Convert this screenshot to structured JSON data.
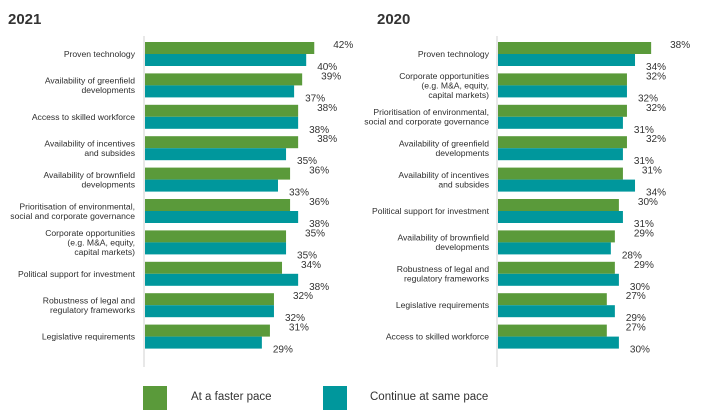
{
  "chart_data": [
    {
      "type": "bar",
      "orientation": "horizontal",
      "title": "2021",
      "categories": [
        "Proven technology",
        "Availability of greenfield developments",
        "Access to skilled workforce",
        "Availability of incentives and subsides",
        "Availability of brownfield developments",
        "Prioritisation of environmental, social and corporate governance",
        "Corporate opportunities (e.g.  M&A, equity, capital markets)",
        "Political support for investment",
        "Robustness of legal and regulatory frameworks",
        "Legislative requirements"
      ],
      "category_lines": [
        [
          "Proven technology"
        ],
        [
          "Availability of greenfield",
          "developments"
        ],
        [
          "Access to skilled workforce"
        ],
        [
          "Availability of incentives",
          "and subsides"
        ],
        [
          "Availability of brownfield",
          "developments"
        ],
        [
          "Prioritisation of environmental,",
          "social and corporate governance"
        ],
        [
          "Corporate opportunities",
          "(e.g.  M&A, equity,",
          "capital markets)"
        ],
        [
          "Political support for investment"
        ],
        [
          "Robustness of legal and",
          "regulatory frameworks"
        ],
        [
          "Legislative requirements"
        ]
      ],
      "series": [
        {
          "name": "At a faster pace",
          "values": [
            42,
            39,
            38,
            38,
            36,
            36,
            35,
            34,
            32,
            31
          ]
        },
        {
          "name": "Continue at same pace",
          "values": [
            40,
            37,
            38,
            35,
            33,
            38,
            35,
            38,
            32,
            29
          ]
        }
      ],
      "unit": "%",
      "xlim": [
        0,
        45
      ],
      "grid": false
    },
    {
      "type": "bar",
      "orientation": "horizontal",
      "title": "2020",
      "categories": [
        "Proven technology",
        "Corporate opportunities (e.g.  M&A, equity, capital markets)",
        "Prioritisation of environmental, social and corporate governance",
        "Availability of greenfield developments",
        "Availability of incentives and subsides",
        "Political support for investment",
        "Availability of brownfield developments",
        "Robustness of legal and regulatory frameworks",
        "Legislative requirements",
        "Access to skilled workforce"
      ],
      "category_lines": [
        [
          "Proven technology"
        ],
        [
          "Corporate opportunities",
          "(e.g.  M&A, equity,",
          "capital markets)"
        ],
        [
          "Prioritisation of environmental,",
          "social and corporate governance"
        ],
        [
          "Availability of greenfield",
          "developments"
        ],
        [
          "Availability of incentives",
          "and subsides"
        ],
        [
          "Political support for investment"
        ],
        [
          "Availability of brownfield",
          "developments"
        ],
        [
          "Robustness of legal and",
          "regulatory frameworks"
        ],
        [
          "Legislative requirements"
        ],
        [
          "Access to skilled workforce"
        ]
      ],
      "series": [
        {
          "name": "At a faster pace",
          "values": [
            38,
            32,
            32,
            32,
            31,
            30,
            29,
            29,
            27,
            27
          ]
        },
        {
          "name": "Continue at same pace",
          "values": [
            34,
            32,
            31,
            31,
            34,
            31,
            28,
            30,
            29,
            30
          ]
        }
      ],
      "unit": "%",
      "xlim": [
        0,
        45
      ],
      "grid": false
    }
  ],
  "legend": {
    "position": "bottom",
    "items": [
      {
        "label": "At a faster pace",
        "color": "#5a9a3a"
      },
      {
        "label": "Continue at same pace",
        "color": "#00979c"
      }
    ]
  }
}
